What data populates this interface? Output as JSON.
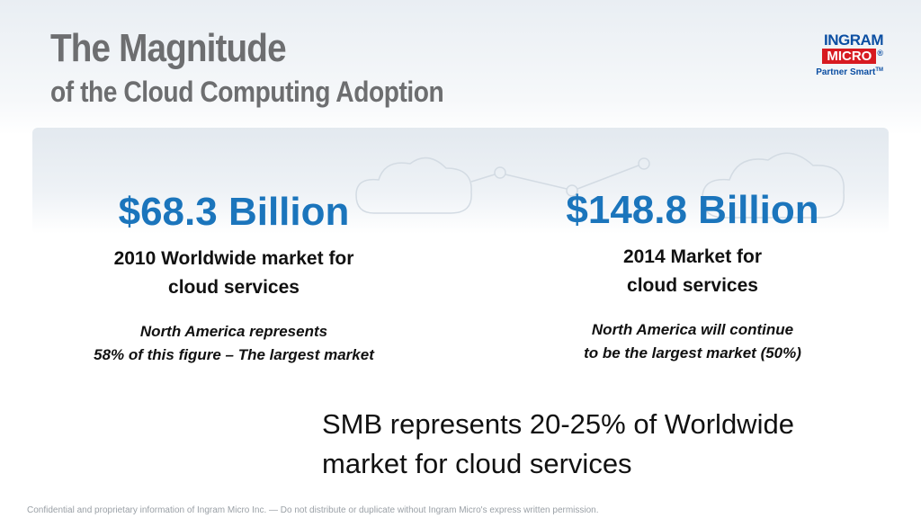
{
  "slide": {
    "title": "The Magnitude",
    "subtitle": "of the Cloud Computing Adoption"
  },
  "logo": {
    "top": "INGRAM",
    "middle": "MICRO",
    "registered": "®",
    "bottom": "Partner Smart",
    "trademark": "TM"
  },
  "left": {
    "amount": "$68.3 Billion",
    "desc_line1": "2010 Worldwide market for",
    "desc_line2": "cloud services",
    "note_line1": "North America represents",
    "note_line2": "58% of this figure – The largest market"
  },
  "right": {
    "amount": "$148.8 Billion",
    "desc_line1": "2014 Market for",
    "desc_line2": "cloud services",
    "note_line1": "North America will continue",
    "note_line2": "to be the largest market (50%)"
  },
  "smb": {
    "line1": "SMB represents 20-25% of Worldwide",
    "line2": "market for cloud services"
  },
  "footer": "Confidential and proprietary information of Ingram Micro Inc. — Do not distribute or duplicate without Ingram Micro's express written permission.",
  "colors": {
    "title": "#6d6e70",
    "amount": "#1b75bc",
    "brand_blue": "#0b4ea2",
    "brand_red": "#d71920"
  }
}
